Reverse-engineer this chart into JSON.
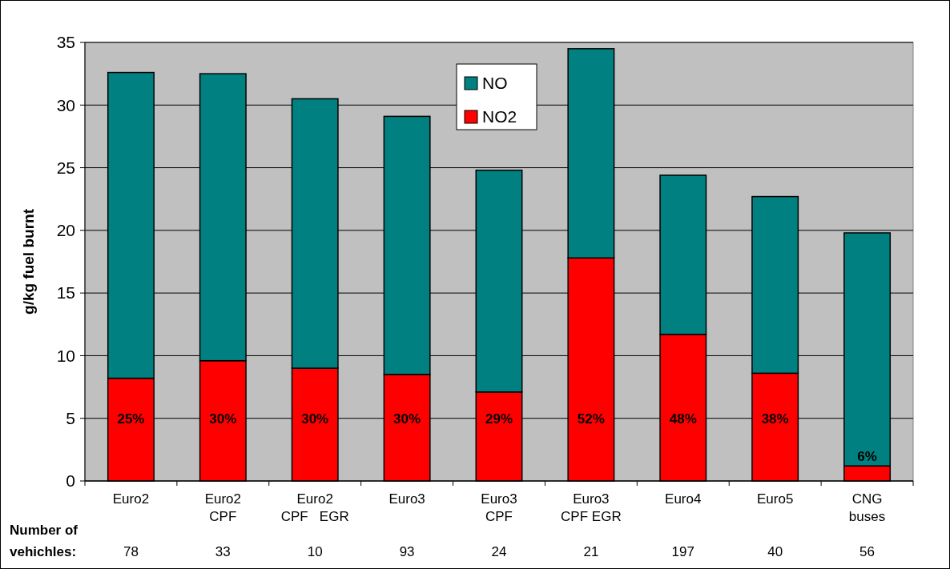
{
  "chart_data": {
    "type": "bar",
    "stacked": true,
    "ylabel": "g/kg fuel burnt",
    "categories": [
      "Euro2",
      "Euro2\nCPF",
      "Euro2\nCPF   EGR",
      "Euro3",
      "Euro3\nCPF",
      "Euro3\nCPF EGR",
      "Euro4",
      "Euro5",
      "CNG\nbuses"
    ],
    "series": [
      {
        "name": "NO2",
        "color": "#ff0000",
        "values": [
          8.2,
          9.6,
          9.0,
          8.5,
          7.1,
          17.8,
          11.7,
          8.6,
          1.2
        ]
      },
      {
        "name": "NO",
        "color": "#008080",
        "values": [
          24.4,
          22.9,
          21.5,
          20.6,
          17.7,
          16.7,
          12.7,
          14.1,
          18.6
        ]
      }
    ],
    "ylim": [
      0,
      35
    ],
    "yticks": [
      0,
      5,
      10,
      15,
      20,
      25,
      30,
      35
    ],
    "grid": "y",
    "legend": "top",
    "annotations": [
      "Number of\nvehichles:",
      "78",
      "33",
      "10",
      "93",
      "24",
      "21",
      "197",
      "40",
      "56",
      "25%",
      "30%",
      "30%",
      "30%",
      "29%",
      "52%",
      "48%",
      "38%",
      "6%"
    ]
  }
}
